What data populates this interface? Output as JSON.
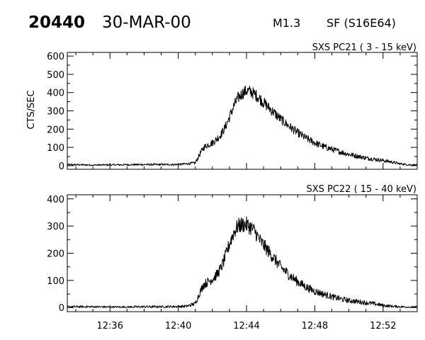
{
  "header": {
    "event_id": "20440",
    "date": "30-MAR-00",
    "goes_class": "M1.3",
    "flare_info": "SF (S16E64)"
  },
  "chart_data": [
    {
      "type": "line",
      "title": "SXS PC21  (  3 - 15 keV)",
      "ylabel": "CTS/SEC",
      "xlabel": "",
      "xlim": [
        "12:33:30",
        "12:54:00"
      ],
      "ylim": [
        -20,
        620
      ],
      "y_ticks": [
        0,
        100,
        200,
        300,
        400,
        500,
        600
      ],
      "x_ticks": [
        "12:36",
        "12:40",
        "12:44",
        "12:48",
        "12:52"
      ],
      "series": [
        {
          "x": [
            "12:33:30",
            "12:34:00",
            "12:35:00",
            "12:36:00",
            "12:37:00",
            "12:38:00",
            "12:39:00",
            "12:40:00",
            "12:40:30",
            "12:41:00",
            "12:41:10",
            "12:41:20",
            "12:41:30",
            "12:41:45",
            "12:42:00",
            "12:42:15",
            "12:42:30",
            "12:42:45",
            "12:43:00",
            "12:43:15",
            "12:43:30",
            "12:43:45",
            "12:44:00",
            "12:44:15",
            "12:44:30",
            "12:44:45",
            "12:45:00",
            "12:45:30",
            "12:46:00",
            "12:46:30",
            "12:47:00",
            "12:47:30",
            "12:48:00",
            "12:48:30",
            "12:49:00",
            "12:49:30",
            "12:50:00",
            "12:50:30",
            "12:51:00",
            "12:51:30",
            "12:52:00",
            "12:52:30",
            "12:53:00",
            "12:53:30",
            "12:54:00"
          ],
          "values": [
            5,
            5,
            3,
            4,
            5,
            6,
            6,
            6,
            10,
            15,
            45,
            75,
            100,
            115,
            125,
            145,
            170,
            210,
            265,
            325,
            370,
            395,
            410,
            405,
            390,
            370,
            345,
            300,
            255,
            215,
            180,
            150,
            125,
            105,
            90,
            75,
            62,
            52,
            42,
            35,
            28,
            20,
            10,
            5,
            3
          ]
        }
      ]
    },
    {
      "type": "line",
      "title": "SXS PC22  ( 15 - 40 keV)",
      "ylabel": "",
      "xlabel": "",
      "xlim": [
        "12:33:30",
        "12:54:00"
      ],
      "ylim": [
        -15,
        415
      ],
      "y_ticks": [
        0,
        100,
        200,
        300,
        400
      ],
      "x_ticks": [
        "12:36",
        "12:40",
        "12:44",
        "12:48",
        "12:52"
      ],
      "series": [
        {
          "x": [
            "12:33:30",
            "12:34:00",
            "12:35:00",
            "12:36:00",
            "12:37:00",
            "12:38:00",
            "12:39:00",
            "12:40:00",
            "12:40:30",
            "12:41:00",
            "12:41:10",
            "12:41:20",
            "12:41:30",
            "12:41:45",
            "12:42:00",
            "12:42:15",
            "12:42:30",
            "12:42:45",
            "12:43:00",
            "12:43:15",
            "12:43:30",
            "12:43:45",
            "12:44:00",
            "12:44:15",
            "12:44:30",
            "12:44:45",
            "12:45:00",
            "12:45:30",
            "12:46:00",
            "12:46:30",
            "12:47:00",
            "12:47:30",
            "12:48:00",
            "12:48:30",
            "12:49:00",
            "12:49:30",
            "12:50:00",
            "12:50:30",
            "12:51:00",
            "12:51:30",
            "12:52:00",
            "12:52:30",
            "12:53:00",
            "12:53:30",
            "12:54:00"
          ],
          "values": [
            3,
            3,
            3,
            2,
            2,
            3,
            3,
            4,
            5,
            15,
            40,
            65,
            85,
            95,
            105,
            120,
            145,
            185,
            235,
            275,
            300,
            305,
            305,
            295,
            280,
            250,
            230,
            190,
            150,
            120,
            95,
            75,
            60,
            50,
            40,
            32,
            26,
            22,
            18,
            14,
            8,
            5,
            3,
            2,
            2
          ]
        }
      ]
    }
  ]
}
